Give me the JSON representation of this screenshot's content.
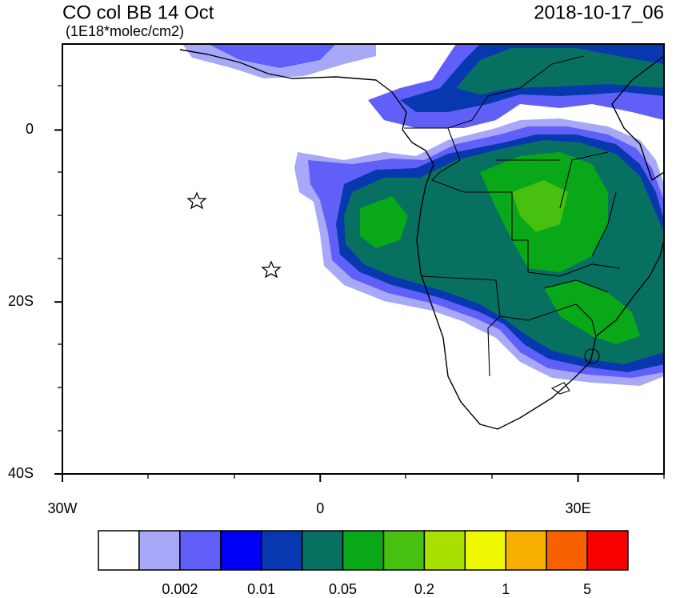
{
  "header": {
    "title": "CO col BB 14 Oct",
    "units": "(1E18*molec/cm2)",
    "date": "2018-10-17_06"
  },
  "map": {
    "lonlim": [
      -30,
      40
    ],
    "latlim": [
      -40,
      10
    ],
    "lon_ticks": [
      {
        "value": -30,
        "label": "30W"
      },
      0,
      {
        "value": 30,
        "label": "30E"
      }
    ],
    "lat_ticks": [
      0,
      {
        "value": -20,
        "label": "20S"
      },
      {
        "value": -40,
        "label": "40S"
      }
    ]
  },
  "colorbar": {
    "colors": [
      "#ffffff",
      "#a8a8f8",
      "#6060f8",
      "#0000f8",
      "#0838b0",
      "#087060",
      "#08a818",
      "#48c010",
      "#a8e000",
      "#f0f800",
      "#f8b000",
      "#f86000",
      "#f80000"
    ],
    "labels": [
      0.002,
      0.01,
      0.05,
      0.2,
      1,
      5
    ]
  }
}
